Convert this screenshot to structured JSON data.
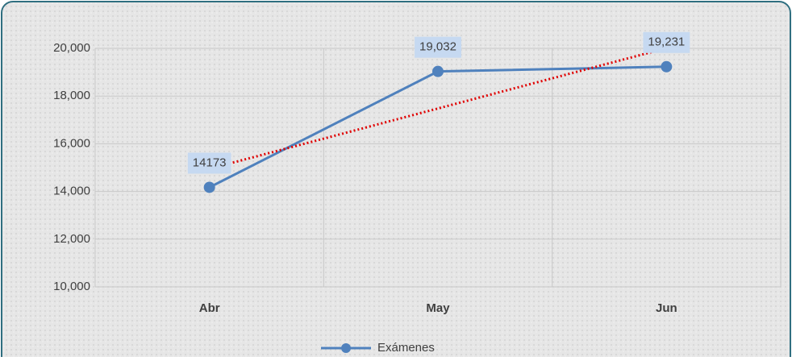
{
  "chart_data": {
    "type": "line",
    "categories": [
      "Abr",
      "May",
      "Jun"
    ],
    "series": [
      {
        "name": "Exámenes",
        "color": "#4f81bd",
        "values": [
          14173,
          19032,
          19231
        ],
        "value_labels": [
          "14173",
          "19,032",
          "19,231"
        ]
      }
    ],
    "trendline": {
      "color": "#e00000",
      "values": [
        14950,
        20008
      ]
    },
    "ylim": [
      10000,
      20000
    ],
    "yticks": [
      {
        "value": 10000,
        "label": "10,000"
      },
      {
        "value": 12000,
        "label": "12,000"
      },
      {
        "value": 14000,
        "label": "14,000"
      },
      {
        "value": 16000,
        "label": "16,000"
      },
      {
        "value": 18000,
        "label": "18,000"
      },
      {
        "value": 20000,
        "label": "20,000"
      }
    ],
    "grid": true,
    "legend": "bottom"
  }
}
